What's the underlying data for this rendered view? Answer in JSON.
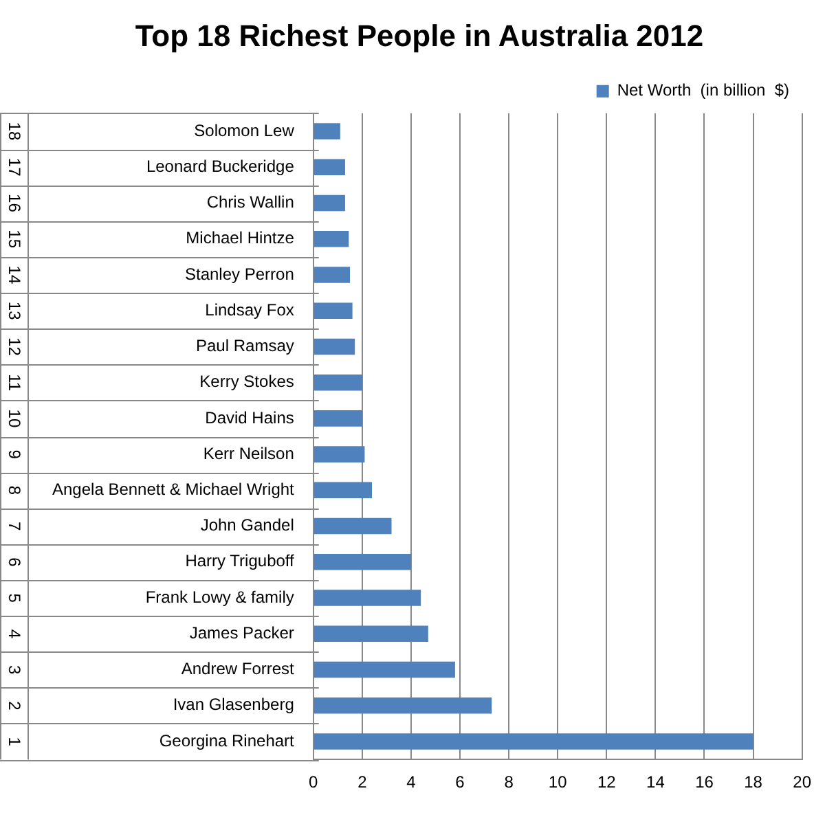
{
  "chart_data": {
    "type": "bar",
    "orientation": "horizontal",
    "title": "Top 18 Richest People in Australia 2012",
    "categories": [
      "Solomon Lew",
      "Leonard Buckeridge",
      "Chris Wallin",
      "Michael Hintze",
      "Stanley Perron",
      "Lindsay Fox",
      "Paul Ramsay",
      "Kerry Stokes",
      "David Hains",
      "Kerr Neilson",
      "Angela Bennett & Michael Wright",
      "John Gandel",
      "Harry Triguboff",
      "Frank Lowy & family",
      "James Packer",
      "Andrew Forrest",
      "Ivan Glasenberg",
      "Georgina Rinehart"
    ],
    "series": [
      {
        "name": "Net Worth  (in billion  $)",
        "color": "#4f81bd",
        "values": [
          1.1,
          1.3,
          1.3,
          1.45,
          1.5,
          1.6,
          1.7,
          2.0,
          2.0,
          2.1,
          2.4,
          3.2,
          4.0,
          4.4,
          4.7,
          5.8,
          7.3,
          18
        ]
      }
    ],
    "annotations": [
      "18",
      "17",
      "16",
      "15",
      "14",
      "13",
      "12",
      "11",
      "10",
      "9",
      "8",
      "7",
      "6",
      "5",
      "4",
      "3",
      "2",
      "1"
    ],
    "xlim": [
      0,
      20
    ],
    "xticks": [
      0,
      2,
      4,
      6,
      8,
      10,
      12,
      14,
      16,
      18,
      20
    ],
    "grid": "x",
    "legend": "top right"
  }
}
